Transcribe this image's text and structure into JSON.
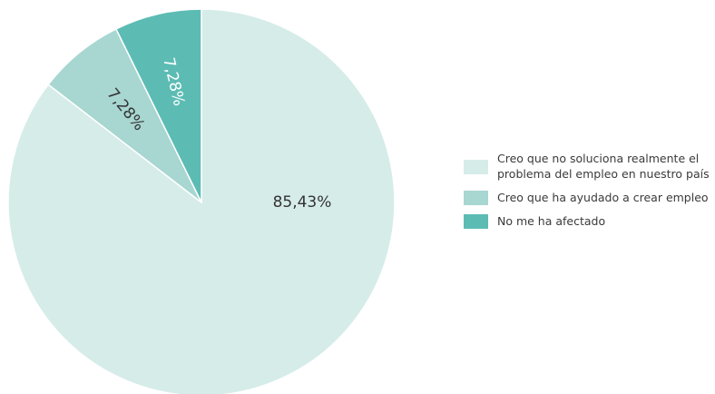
{
  "chart_data": {
    "type": "pie",
    "slices": [
      {
        "label": "Creo que no soluciona realmente el\nproblema del empleo en nuestro país",
        "value": 85.43,
        "value_label": "85,43%",
        "color": "#d6ece9",
        "label_color": "#333333"
      },
      {
        "label": "Creo que ha ayudado a crear empleo",
        "value": 7.28,
        "value_label": "7,28%",
        "color": "#a8d6d1",
        "label_color": "#333333"
      },
      {
        "label": "No me ha afectado",
        "value": 7.28,
        "value_label": "7,28%",
        "color": "#5cbcb4",
        "label_color": "#ffffff"
      }
    ],
    "legend_position": "right"
  }
}
